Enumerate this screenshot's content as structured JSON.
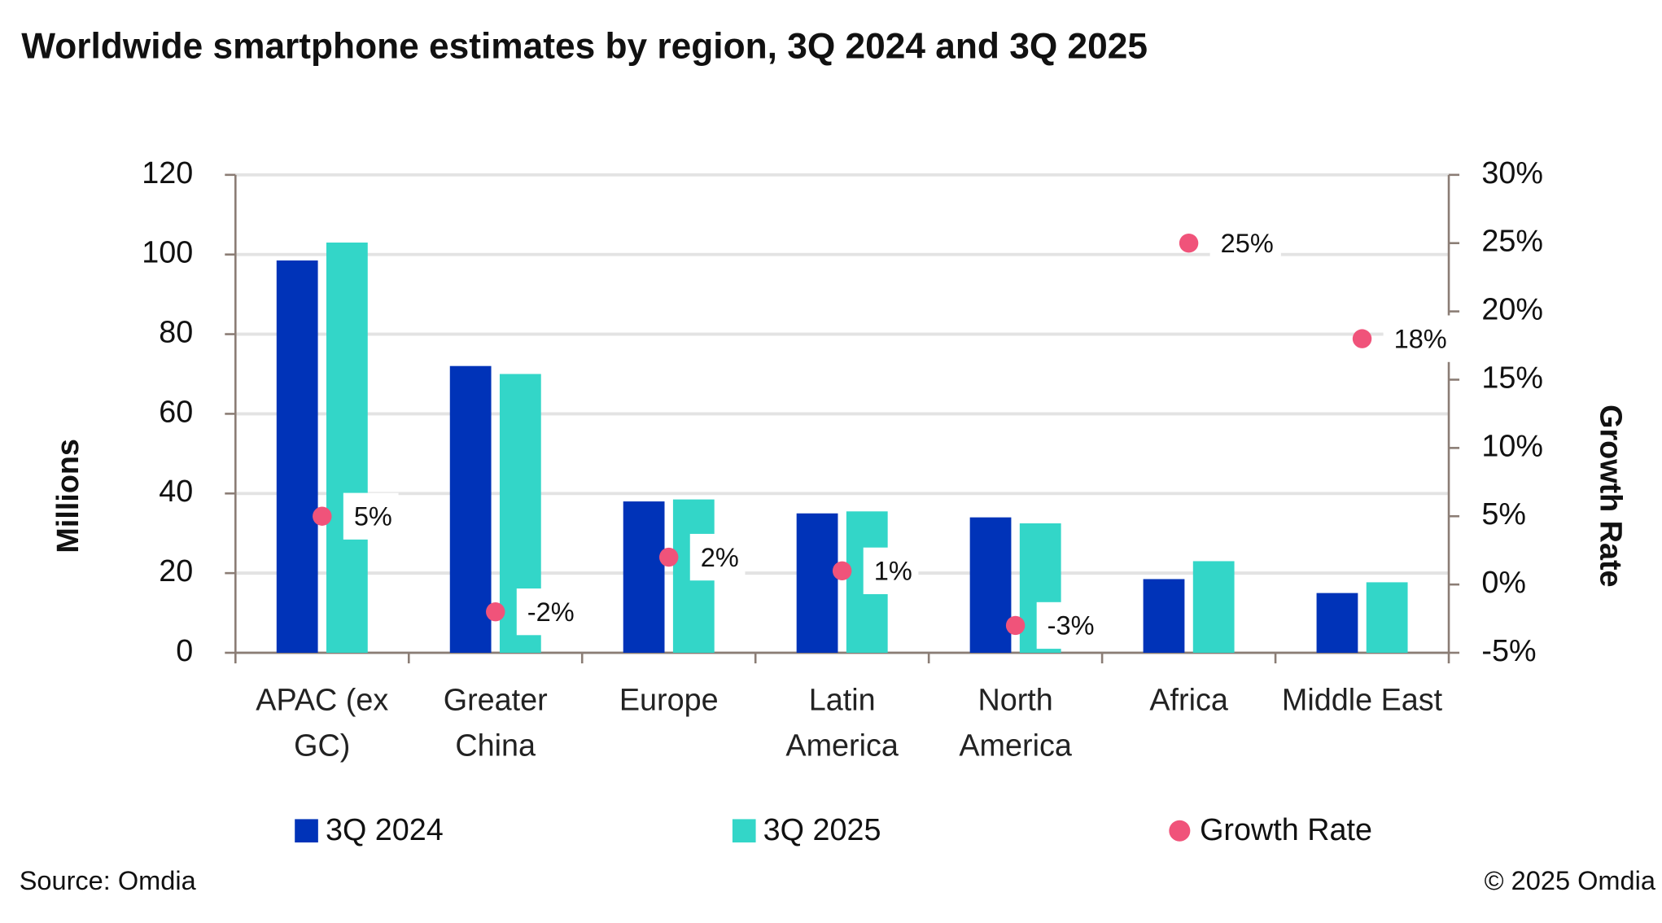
{
  "chart_data": {
    "type": "bar",
    "title": "Worldwide smartphone estimates by region, 3Q 2024 and 3Q 2025",
    "source": "Source: Omdia",
    "copyright": "© 2025 Omdia",
    "y_label": "Millions",
    "y2_label": "Growth Rate",
    "categories": [
      "APAC (ex GC)",
      "Greater China",
      "Europe",
      "Latin America",
      "North America",
      "Africa",
      "Middle East"
    ],
    "series": [
      {
        "name": "3Q 2024",
        "color": "#0033b8",
        "values": [
          98.5,
          72,
          38,
          35,
          34,
          18.5,
          15
        ]
      },
      {
        "name": "3Q 2025",
        "color": "#33d6c8",
        "values": [
          103,
          70,
          38.5,
          35.5,
          32.5,
          23,
          17.7
        ]
      },
      {
        "name": "Growth Rate",
        "color": "#f0537a",
        "type": "scatter",
        "axis": "y2",
        "values": [
          5,
          -2,
          2,
          1,
          -3,
          25,
          18
        ],
        "value_labels": [
          "5%",
          "-2%",
          "2%",
          "1%",
          "-3%",
          "25%",
          "18%"
        ]
      }
    ],
    "ylim": [
      0,
      120
    ],
    "yticks": [
      0,
      20,
      40,
      60,
      80,
      100,
      120
    ],
    "y2lim": [
      -5,
      30
    ],
    "y2ticks": [
      {
        "value": -5,
        "label": "-5%"
      },
      {
        "value": 0,
        "label": "0%"
      },
      {
        "value": 5,
        "label": "5%"
      },
      {
        "value": 10,
        "label": "10%"
      },
      {
        "value": 15,
        "label": "15%"
      },
      {
        "value": 20,
        "label": "20%"
      },
      {
        "value": 25,
        "label": "25%"
      },
      {
        "value": 30,
        "label": "30%"
      }
    ],
    "grid": true
  }
}
